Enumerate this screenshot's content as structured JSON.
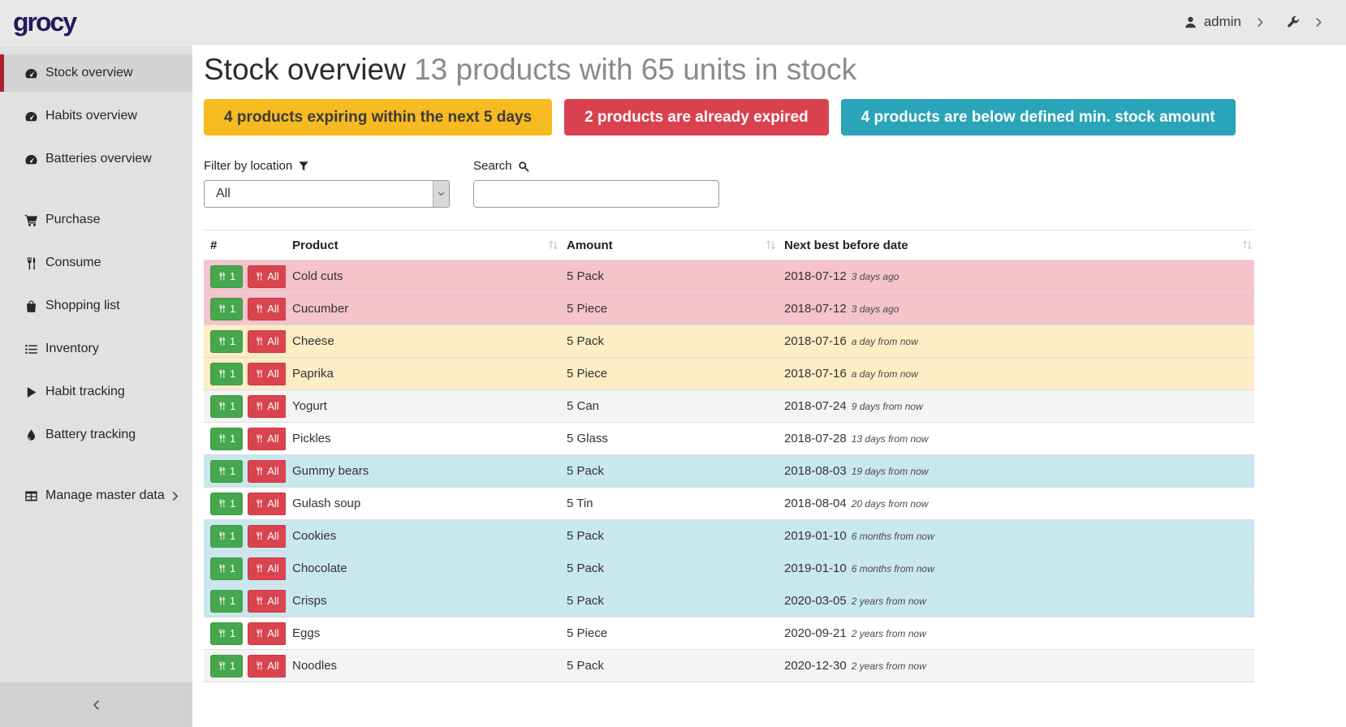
{
  "header": {
    "logo": "grocy",
    "user": "admin"
  },
  "sidebar": {
    "items": [
      {
        "label": "Stock overview",
        "icon": "dashboard-icon",
        "active": true,
        "group": 1
      },
      {
        "label": "Habits overview",
        "icon": "dashboard-icon",
        "active": false,
        "group": 1
      },
      {
        "label": "Batteries overview",
        "icon": "dashboard-icon",
        "active": false,
        "group": 1
      },
      {
        "label": "Purchase",
        "icon": "cart-icon",
        "active": false,
        "group": 2
      },
      {
        "label": "Consume",
        "icon": "utensils-icon",
        "active": false,
        "group": 2
      },
      {
        "label": "Shopping list",
        "icon": "shopping-bag-icon",
        "active": false,
        "group": 2
      },
      {
        "label": "Inventory",
        "icon": "list-icon",
        "active": false,
        "group": 2
      },
      {
        "label": "Habit tracking",
        "icon": "play-icon",
        "active": false,
        "group": 2
      },
      {
        "label": "Battery tracking",
        "icon": "droplet-icon",
        "active": false,
        "group": 2
      },
      {
        "label": "Manage master data",
        "icon": "table-icon",
        "active": false,
        "group": 3,
        "chevron": true
      }
    ]
  },
  "page": {
    "title": "Stock overview",
    "subtitle": "13 products with 65 units in stock"
  },
  "badges": [
    {
      "text": "4 products expiring within the next 5 days",
      "bg": "#f7ba20",
      "color": "#3b3b3b"
    },
    {
      "text": "2 products are already expired",
      "bg": "#d9414e",
      "color": "#ffffff"
    },
    {
      "text": "4 products are below defined min. stock amount",
      "bg": "#2aa4b8",
      "color": "#ffffff"
    }
  ],
  "filters": {
    "location_label": "Filter by location",
    "location_value": "All",
    "search_label": "Search",
    "search_value": ""
  },
  "table": {
    "columns": [
      {
        "label": "#",
        "sortable": false
      },
      {
        "label": "Product",
        "sortable": true
      },
      {
        "label": "Amount",
        "sortable": true
      },
      {
        "label": "Next best before date",
        "sortable": true
      }
    ],
    "consume_buttons": {
      "one": "1",
      "all": "All"
    },
    "rows": [
      {
        "product": "Cold cuts",
        "amount": "5 Pack",
        "date": "2018-07-12",
        "timeago": "3 days ago",
        "status": "expired"
      },
      {
        "product": "Cucumber",
        "amount": "5 Piece",
        "date": "2018-07-12",
        "timeago": "3 days ago",
        "status": "expired"
      },
      {
        "product": "Cheese",
        "amount": "5 Pack",
        "date": "2018-07-16",
        "timeago": "a day from now",
        "status": "expiring"
      },
      {
        "product": "Paprika",
        "amount": "5 Piece",
        "date": "2018-07-16",
        "timeago": "a day from now",
        "status": "expiring"
      },
      {
        "product": "Yogurt",
        "amount": "5 Can",
        "date": "2018-07-24",
        "timeago": "9 days from now",
        "status": "stripe"
      },
      {
        "product": "Pickles",
        "amount": "5 Glass",
        "date": "2018-07-28",
        "timeago": "13 days from now",
        "status": "plain"
      },
      {
        "product": "Gummy bears",
        "amount": "5 Pack",
        "date": "2018-08-03",
        "timeago": "19 days from now",
        "status": "belowmin"
      },
      {
        "product": "Gulash soup",
        "amount": "5 Tin",
        "date": "2018-08-04",
        "timeago": "20 days from now",
        "status": "plain"
      },
      {
        "product": "Cookies",
        "amount": "5 Pack",
        "date": "2019-01-10",
        "timeago": "6 months from now",
        "status": "belowmin"
      },
      {
        "product": "Chocolate",
        "amount": "5 Pack",
        "date": "2019-01-10",
        "timeago": "6 months from now",
        "status": "belowmin"
      },
      {
        "product": "Crisps",
        "amount": "5 Pack",
        "date": "2020-03-05",
        "timeago": "2 years from now",
        "status": "belowmin"
      },
      {
        "product": "Eggs",
        "amount": "5 Piece",
        "date": "2020-09-21",
        "timeago": "2 years from now",
        "status": "plain"
      },
      {
        "product": "Noodles",
        "amount": "5 Pack",
        "date": "2020-12-30",
        "timeago": "2 years from now",
        "status": "stripe"
      }
    ]
  },
  "colors": {
    "row_status": {
      "expired": "#f4c3cb",
      "expiring": "#fcedc4",
      "belowmin": "#c9e7ee",
      "stripe": "#f4f4f4",
      "plain": "#ffffff"
    },
    "accent_red": "#ae1f32",
    "button_green": "#46a74c",
    "button_red": "#d9444f",
    "logo_navy": "#221a5c"
  }
}
